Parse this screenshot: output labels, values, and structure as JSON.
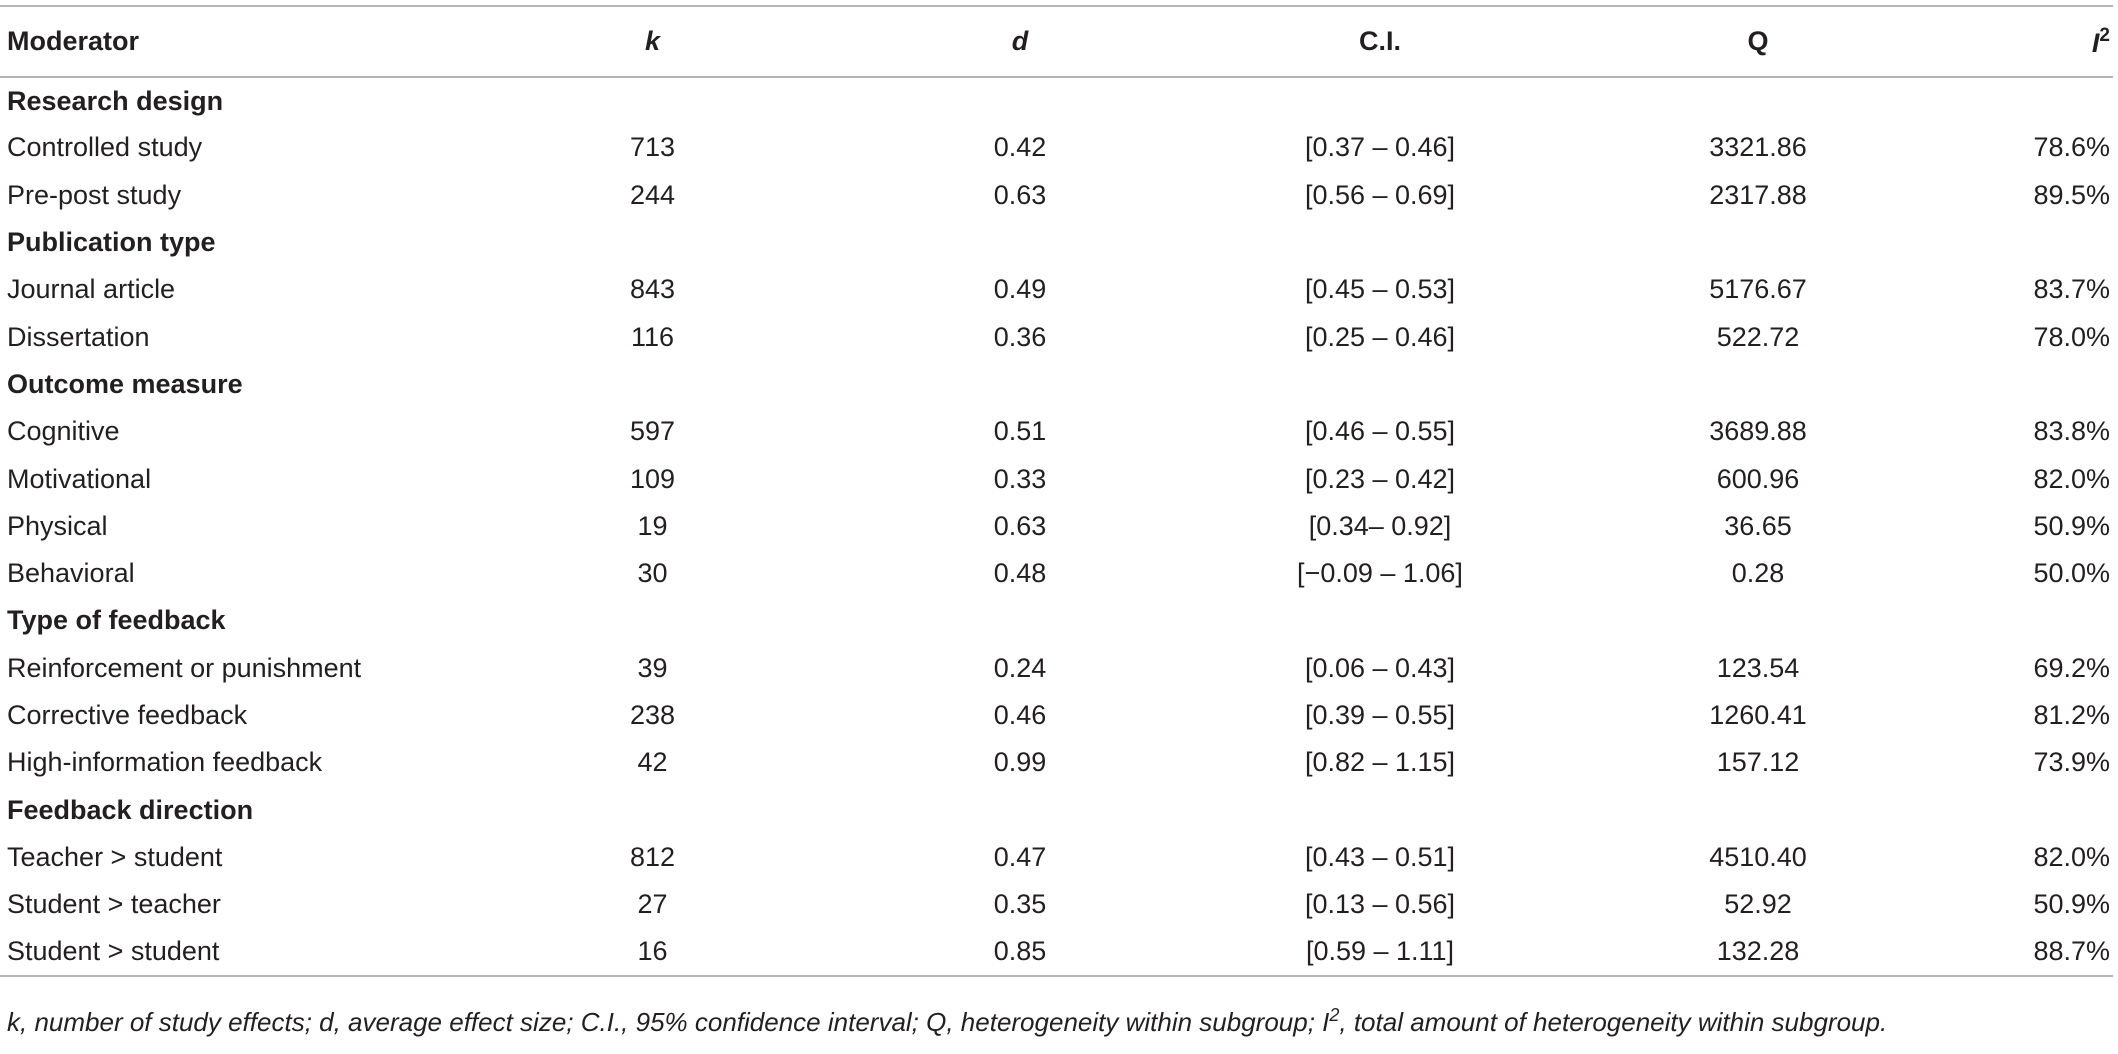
{
  "table": {
    "headers": {
      "moderator": "Moderator",
      "k": "k",
      "d": "d",
      "ci": "C.I.",
      "q": "Q",
      "i2_base": "I",
      "i2_sup": "2"
    },
    "groups": [
      {
        "title": "Research design",
        "rows": [
          {
            "moderator": "Controlled study",
            "k": "713",
            "d": "0.42",
            "ci": "[0.37 – 0.46]",
            "q": "3321.86",
            "i2": "78.6%"
          },
          {
            "moderator": "Pre-post study",
            "k": "244",
            "d": "0.63",
            "ci": "[0.56 – 0.69]",
            "q": "2317.88",
            "i2": "89.5%"
          }
        ]
      },
      {
        "title": "Publication type",
        "rows": [
          {
            "moderator": "Journal article",
            "k": "843",
            "d": "0.49",
            "ci": "[0.45 – 0.53]",
            "q": "5176.67",
            "i2": "83.7%"
          },
          {
            "moderator": "Dissertation",
            "k": "116",
            "d": "0.36",
            "ci": "[0.25 – 0.46]",
            "q": "522.72",
            "i2": "78.0%"
          }
        ]
      },
      {
        "title": "Outcome measure",
        "rows": [
          {
            "moderator": "Cognitive",
            "k": "597",
            "d": "0.51",
            "ci": "[0.46 – 0.55]",
            "q": "3689.88",
            "i2": "83.8%"
          },
          {
            "moderator": "Motivational",
            "k": "109",
            "d": "0.33",
            "ci": "[0.23 – 0.42]",
            "q": "600.96",
            "i2": "82.0%"
          },
          {
            "moderator": "Physical",
            "k": "19",
            "d": "0.63",
            "ci": "[0.34– 0.92]",
            "q": "36.65",
            "i2": "50.9%"
          },
          {
            "moderator": "Behavioral",
            "k": "30",
            "d": "0.48",
            "ci": "[−0.09 – 1.06]",
            "q": "0.28",
            "i2": "50.0%"
          }
        ]
      },
      {
        "title": "Type of feedback",
        "rows": [
          {
            "moderator": "Reinforcement or punishment",
            "k": "39",
            "d": "0.24",
            "ci": "[0.06 – 0.43]",
            "q": "123.54",
            "i2": "69.2%"
          },
          {
            "moderator": "Corrective feedback",
            "k": "238",
            "d": "0.46",
            "ci": "[0.39 – 0.55]",
            "q": "1260.41",
            "i2": "81.2%"
          },
          {
            "moderator": "High-information feedback",
            "k": "42",
            "d": "0.99",
            "ci": "[0.82 – 1.15]",
            "q": "157.12",
            "i2": "73.9%"
          }
        ]
      },
      {
        "title": "Feedback direction",
        "rows": [
          {
            "moderator": "Teacher > student",
            "k": "812",
            "d": "0.47",
            "ci": "[0.43 – 0.51]",
            "q": "4510.40",
            "i2": "82.0%"
          },
          {
            "moderator": "Student > teacher",
            "k": "27",
            "d": "0.35",
            "ci": "[0.13 – 0.56]",
            "q": "52.92",
            "i2": "50.9%"
          },
          {
            "moderator": "Student > student",
            "k": "16",
            "d": "0.85",
            "ci": "[0.59 – 1.11]",
            "q": "132.28",
            "i2": "88.7%"
          }
        ]
      }
    ]
  },
  "footnote": {
    "before_sup": "k, number of study effects; d, average effect size; C.I., 95% confidence interval; Q, heterogeneity within subgroup; I",
    "sup": "2",
    "after_sup": ", total amount of heterogeneity within subgroup."
  }
}
